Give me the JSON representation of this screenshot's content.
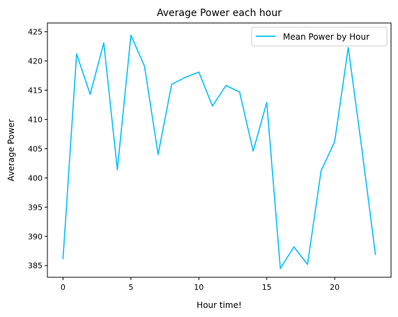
{
  "chart_data": {
    "type": "line",
    "title": "Average Power each hour",
    "xlabel": "Hour time!",
    "ylabel": "Average Power",
    "xlim": [
      -1.15,
      24.15
    ],
    "ylim": [
      383.0,
      426.5
    ],
    "xticks": [
      0,
      5,
      10,
      15,
      20
    ],
    "xtick_labels": [
      "0",
      "5",
      "10",
      "15",
      "20"
    ],
    "yticks": [
      385,
      390,
      395,
      400,
      405,
      410,
      415,
      420,
      425
    ],
    "ytick_labels": [
      "385",
      "390",
      "395",
      "400",
      "405",
      "410",
      "415",
      "420",
      "425"
    ],
    "grid": false,
    "legend_position": "top-right",
    "series": [
      {
        "name": "Mean Power by Hour",
        "color": "#00bfff",
        "x": [
          0,
          1,
          2,
          3,
          4,
          5,
          6,
          7,
          8,
          9,
          10,
          11,
          12,
          13,
          14,
          15,
          16,
          17,
          18,
          19,
          20,
          21,
          22,
          23
        ],
        "y": [
          386.2,
          421.2,
          414.3,
          423.1,
          401.4,
          424.4,
          419.1,
          404.0,
          416.0,
          417.2,
          418.1,
          412.3,
          415.8,
          414.7,
          404.6,
          412.9,
          384.5,
          388.2,
          385.2,
          401.2,
          406.2,
          422.3,
          405.0,
          386.9
        ]
      }
    ]
  }
}
